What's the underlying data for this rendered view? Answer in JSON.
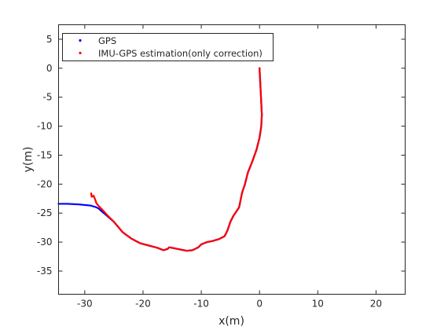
{
  "chart_data": {
    "type": "scatter",
    "xlabel": "x(m)",
    "ylabel": "y(m)",
    "xlim": [
      -34.5,
      25
    ],
    "ylim": [
      -39,
      7.5
    ],
    "xticks": [
      -30,
      -20,
      -10,
      0,
      10,
      20
    ],
    "yticks": [
      5,
      0,
      -5,
      -10,
      -15,
      -20,
      -25,
      -30,
      -35
    ],
    "grid": false,
    "legend_position": "top-left",
    "series": [
      {
        "name": "GPS",
        "color": "#0000ff",
        "marker": "dot",
        "path": [
          [
            -34.5,
            -23.4
          ],
          [
            -33.0,
            -23.4
          ],
          [
            -31.0,
            -23.5
          ],
          [
            -29.0,
            -23.7
          ],
          [
            -28.0,
            -24.0
          ],
          [
            -27.5,
            -24.3
          ],
          [
            -27.2,
            -24.6
          ],
          [
            -26.5,
            -25.2
          ],
          [
            -25.0,
            -26.5
          ],
          [
            -23.5,
            -28.3
          ],
          [
            -22.0,
            -29.4
          ],
          [
            -20.5,
            -30.2
          ],
          [
            -19.0,
            -30.6
          ],
          [
            -17.5,
            -31.0
          ],
          [
            -16.5,
            -31.4
          ],
          [
            -15.8,
            -31.2
          ],
          [
            -15.5,
            -30.9
          ],
          [
            -14.5,
            -31.1
          ],
          [
            -13.5,
            -31.3
          ],
          [
            -12.5,
            -31.5
          ],
          [
            -11.5,
            -31.4
          ],
          [
            -10.5,
            -30.9
          ],
          [
            -10.0,
            -30.4
          ],
          [
            -9.0,
            -30.0
          ],
          [
            -8.0,
            -29.8
          ],
          [
            -7.0,
            -29.5
          ],
          [
            -6.0,
            -29.0
          ],
          [
            -5.5,
            -28.0
          ],
          [
            -5.0,
            -26.5
          ],
          [
            -4.5,
            -25.5
          ],
          [
            -3.5,
            -24.0
          ],
          [
            -3.0,
            -21.5
          ],
          [
            -2.5,
            -20.0
          ],
          [
            -2.0,
            -18.0
          ],
          [
            -1.2,
            -16.0
          ],
          [
            -0.5,
            -14.0
          ],
          [
            0.0,
            -12.0
          ],
          [
            0.3,
            -10.0
          ],
          [
            0.4,
            -8.0
          ],
          [
            0.3,
            -6.0
          ],
          [
            0.2,
            -4.0
          ],
          [
            0.1,
            -2.0
          ],
          [
            0.0,
            0.0
          ]
        ],
        "point_count": 300
      },
      {
        "name": "IMU-GPS estimation(only correction)",
        "color": "#ff0000",
        "marker": "dot",
        "path": [
          [
            -28.9,
            -21.6
          ],
          [
            -28.8,
            -22.2
          ],
          [
            -28.5,
            -22.0
          ],
          [
            -28.2,
            -22.7
          ],
          [
            -28.0,
            -23.3
          ],
          [
            -27.6,
            -23.8
          ],
          [
            -27.0,
            -24.4
          ],
          [
            -26.2,
            -25.3
          ],
          [
            -25.0,
            -26.5
          ],
          [
            -23.5,
            -28.3
          ],
          [
            -22.0,
            -29.4
          ],
          [
            -20.5,
            -30.2
          ],
          [
            -19.0,
            -30.6
          ],
          [
            -17.5,
            -31.0
          ],
          [
            -16.5,
            -31.4
          ],
          [
            -15.8,
            -31.2
          ],
          [
            -15.5,
            -30.9
          ],
          [
            -14.5,
            -31.1
          ],
          [
            -13.5,
            -31.3
          ],
          [
            -12.5,
            -31.5
          ],
          [
            -11.5,
            -31.4
          ],
          [
            -10.5,
            -30.9
          ],
          [
            -10.0,
            -30.4
          ],
          [
            -9.0,
            -30.0
          ],
          [
            -8.0,
            -29.8
          ],
          [
            -7.0,
            -29.5
          ],
          [
            -6.0,
            -29.0
          ],
          [
            -5.5,
            -28.0
          ],
          [
            -5.0,
            -26.5
          ],
          [
            -4.5,
            -25.5
          ],
          [
            -3.5,
            -24.0
          ],
          [
            -3.0,
            -21.5
          ],
          [
            -2.5,
            -20.0
          ],
          [
            -2.0,
            -18.0
          ],
          [
            -1.2,
            -16.0
          ],
          [
            -0.5,
            -14.0
          ],
          [
            0.0,
            -12.0
          ],
          [
            0.3,
            -10.0
          ],
          [
            0.4,
            -8.0
          ],
          [
            0.3,
            -6.0
          ],
          [
            0.2,
            -4.0
          ],
          [
            0.1,
            -2.0
          ],
          [
            0.0,
            0.0
          ]
        ],
        "point_count": 300
      }
    ]
  }
}
